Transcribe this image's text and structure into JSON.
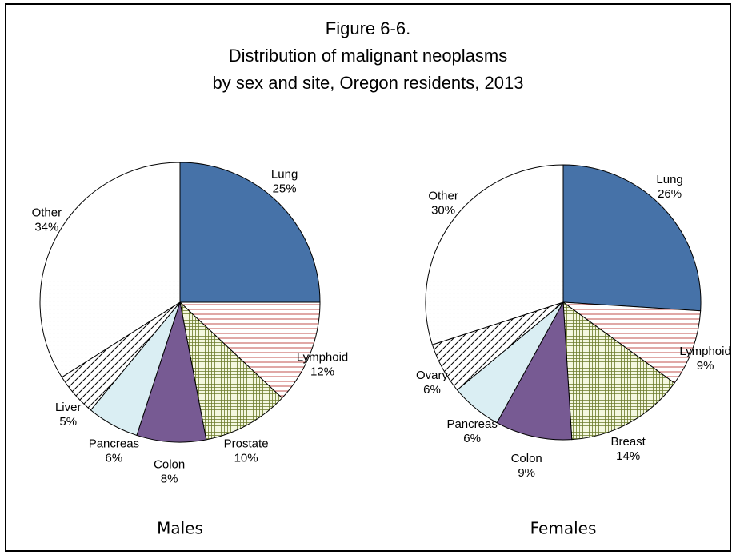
{
  "title": [
    "Figure 6-6.",
    "Distribution of malignant neoplasms",
    "by sex and site, Oregon residents, 2013"
  ],
  "chart_data": [
    {
      "type": "pie",
      "title": "Males",
      "categories": [
        "Lung",
        "Lymphoid",
        "Prostate",
        "Colon",
        "Pancreas",
        "Liver",
        "Other"
      ],
      "values": [
        25,
        12,
        10,
        8,
        6,
        5,
        34
      ],
      "value_labels": [
        "25%",
        "12%",
        "10%",
        "8%",
        "6%",
        "5%",
        "34%"
      ],
      "colors": [
        "#4672a8",
        "#c0504d",
        "#6a7a2a",
        "#775a93",
        "#daeef3",
        "#000000",
        "#888888"
      ],
      "patterns": [
        "solid",
        "hlines",
        "grid",
        "solid",
        "solid",
        "diagonal",
        "dots"
      ]
    },
    {
      "type": "pie",
      "title": "Females",
      "categories": [
        "Lung",
        "Lymphoid",
        "Breast",
        "Colon",
        "Pancreas",
        "Ovary",
        "Other"
      ],
      "values": [
        26,
        9,
        14,
        9,
        6,
        6,
        30
      ],
      "value_labels": [
        "26%",
        "9%",
        "14%",
        "9%",
        "6%",
        "6%",
        "30%"
      ],
      "colors": [
        "#4672a8",
        "#c0504d",
        "#6a7a2a",
        "#775a93",
        "#daeef3",
        "#000000",
        "#888888"
      ],
      "patterns": [
        "solid",
        "hlines",
        "grid",
        "solid",
        "solid",
        "diagonal",
        "dots"
      ]
    }
  ]
}
